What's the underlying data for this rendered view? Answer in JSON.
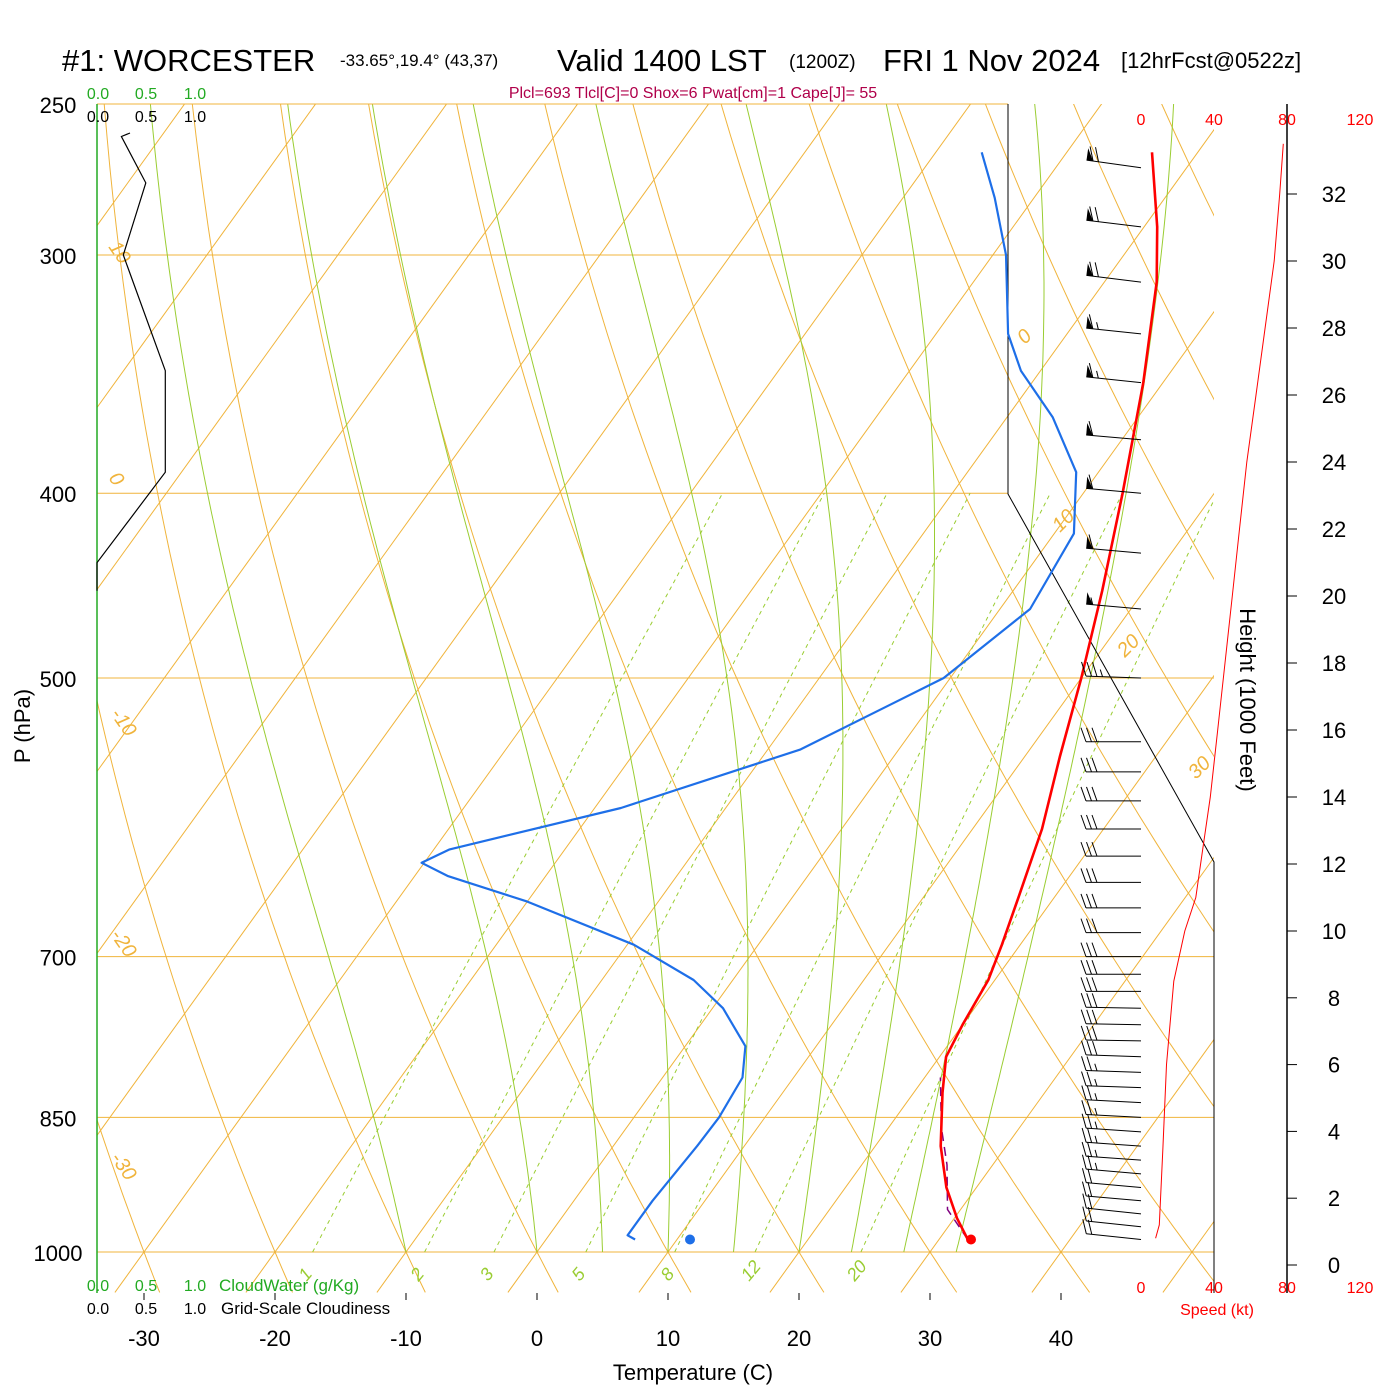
{
  "header": {
    "station": "#1: WORCESTER",
    "coords": "-33.65°,19.4° (43,37)",
    "valid": "Valid 1400 LST",
    "utc": "(1200Z)",
    "date": "FRI 1 Nov 2024",
    "forecast": "[12hrFcst@0522z]",
    "indices": "Plcl=693 Tlcl[C]=0 Shox=6 Pwat[cm]=1 Cape[J]= 55"
  },
  "colors": {
    "temperature": "#ff0000",
    "dewpoint": "#1e6fe8",
    "parcel": "#800080",
    "isotherm": "#f0b43c",
    "mixing_ratio": "#9acd32",
    "cloudwater": "#22aa22",
    "wind_speed": "#ff0000"
  },
  "axes": {
    "ylabel": "P (hPa)",
    "xlabel": "Temperature (C)",
    "height_label": "Height (1000 Feet)",
    "pressure_ticks": [
      "250",
      "300",
      "400",
      "500",
      "700",
      "850",
      "1000"
    ],
    "temp_ticks": [
      "-30",
      "-20",
      "-10",
      "0",
      "10",
      "20",
      "30",
      "40"
    ],
    "height_ticks": [
      "0",
      "2",
      "4",
      "6",
      "8",
      "10",
      "12",
      "14",
      "16",
      "18",
      "20",
      "22",
      "24",
      "26",
      "28",
      "30",
      "32"
    ],
    "speed_ticks": [
      "0",
      "40",
      "80",
      "120"
    ],
    "speed_label": "Speed (kt)",
    "cloud_ticks": [
      "0.0",
      "0.5",
      "1.0"
    ],
    "cloudwater_label": "CloudWater (g/Kg)",
    "cloudiness_label": "Grid-Scale Cloudiness",
    "isotherm_labels": [
      "10",
      "0",
      "-10",
      "-20",
      "-30",
      "0",
      "10",
      "20",
      "30"
    ],
    "mixing_labels": [
      "1",
      "2",
      "3",
      "5",
      "8",
      "12",
      "20"
    ]
  },
  "chart_data": {
    "type": "line",
    "title": "#1: WORCESTER Valid 1400 LST (1200Z) FRI 1 Nov 2024",
    "xlabel": "Temperature (C)",
    "ylabel": "P (hPa)",
    "xlim": [
      -35,
      45
    ],
    "ylim": [
      1000,
      250
    ],
    "log_pressure": true,
    "skew": true,
    "series": [
      {
        "name": "Temperature",
        "points": [
          [
            32.2,
            985
          ],
          [
            30.2,
            960
          ],
          [
            27.7,
            925
          ],
          [
            25.0,
            880
          ],
          [
            22.2,
            825
          ],
          [
            20.5,
            790
          ],
          [
            20.0,
            760
          ],
          [
            19.5,
            720
          ],
          [
            18.6,
            690
          ],
          [
            17.2,
            650
          ],
          [
            15.3,
            600
          ],
          [
            12.7,
            550
          ],
          [
            10.0,
            500
          ],
          [
            6.8,
            450
          ],
          [
            3.0,
            400
          ],
          [
            -1.5,
            350
          ],
          [
            -6.0,
            310
          ],
          [
            -9.0,
            290
          ],
          [
            -13.5,
            265
          ]
        ]
      },
      {
        "name": "Dewpoint",
        "points": [
          [
            6.8,
            985
          ],
          [
            6.0,
            980
          ],
          [
            6.0,
            940
          ],
          [
            6.4,
            880
          ],
          [
            6.5,
            850
          ],
          [
            6.1,
            810
          ],
          [
            4.6,
            780
          ],
          [
            0.8,
            745
          ],
          [
            -3.0,
            720
          ],
          [
            -9.5,
            690
          ],
          [
            -20.0,
            655
          ],
          [
            -27.5,
            635
          ],
          [
            -30.2,
            625
          ],
          [
            -28.8,
            615
          ],
          [
            -18.0,
            585
          ],
          [
            -7.5,
            545
          ],
          [
            -0.5,
            500
          ],
          [
            2.3,
            460
          ],
          [
            1.5,
            420
          ],
          [
            -1.7,
            390
          ],
          [
            -6.5,
            365
          ],
          [
            -11.5,
            345
          ],
          [
            -14.5,
            330
          ],
          [
            -19.0,
            300
          ],
          [
            -23.0,
            280
          ],
          [
            -26.5,
            265
          ]
        ]
      },
      {
        "name": "Parcel",
        "points": [
          [
            32.2,
            985
          ],
          [
            29.0,
            950
          ],
          [
            26.5,
            900
          ],
          [
            24.0,
            860
          ],
          [
            21.2,
            810
          ]
        ]
      }
    ],
    "surface_dewpoint": {
      "temp": 11.8,
      "p": 985
    },
    "surface_temperature": {
      "temp": 33.3,
      "p": 985
    },
    "cloudiness": {
      "points": [
        [
          0.25,
          260
        ],
        [
          0.5,
          275
        ],
        [
          0.27,
          300
        ],
        [
          0.7,
          345
        ],
        [
          0.7,
          390
        ],
        [
          0.0,
          435
        ],
        [
          0.0,
          450
        ]
      ]
    },
    "wind_speed_profile": {
      "height_kft": [
        0.8,
        1.2,
        3.5,
        6.0,
        8.5,
        10.0,
        11.0,
        12.5,
        14.0,
        16.0,
        18.0,
        20.0,
        22.0,
        24.0,
        26.0,
        28.0,
        30.0,
        32.0,
        33.5
      ],
      "speed_kt": [
        8,
        10,
        12,
        14,
        18,
        24,
        30,
        34,
        38,
        42,
        46,
        50,
        54,
        58,
        63,
        68,
        73,
        76,
        78
      ]
    },
    "wind_barbs": {
      "pressure_hpa": [
        985,
        970,
        955,
        940,
        925,
        910,
        895,
        880,
        865,
        850,
        835,
        820,
        805,
        790,
        775,
        760,
        745,
        730,
        715,
        700,
        680,
        660,
        640,
        620,
        600,
        580,
        560,
        540,
        500,
        460,
        430,
        400,
        375,
        350,
        330,
        310,
        290,
        270
      ],
      "speed_kt": [
        20,
        22,
        22,
        24,
        24,
        25,
        25,
        26,
        26,
        28,
        28,
        28,
        28,
        30,
        30,
        30,
        30,
        30,
        30,
        30,
        30,
        30,
        30,
        32,
        34,
        34,
        34,
        34,
        38,
        55,
        60,
        60,
        62,
        65,
        65,
        70,
        70,
        72
      ],
      "direction_deg": [
        276,
        276,
        276,
        275,
        275,
        275,
        274,
        274,
        274,
        273,
        273,
        272,
        272,
        272,
        271,
        271,
        271,
        270,
        270,
        270,
        270,
        270,
        270,
        270,
        270,
        270,
        270,
        270,
        272,
        275,
        275,
        275,
        275,
        276,
        276,
        277,
        277,
        278
      ]
    }
  }
}
